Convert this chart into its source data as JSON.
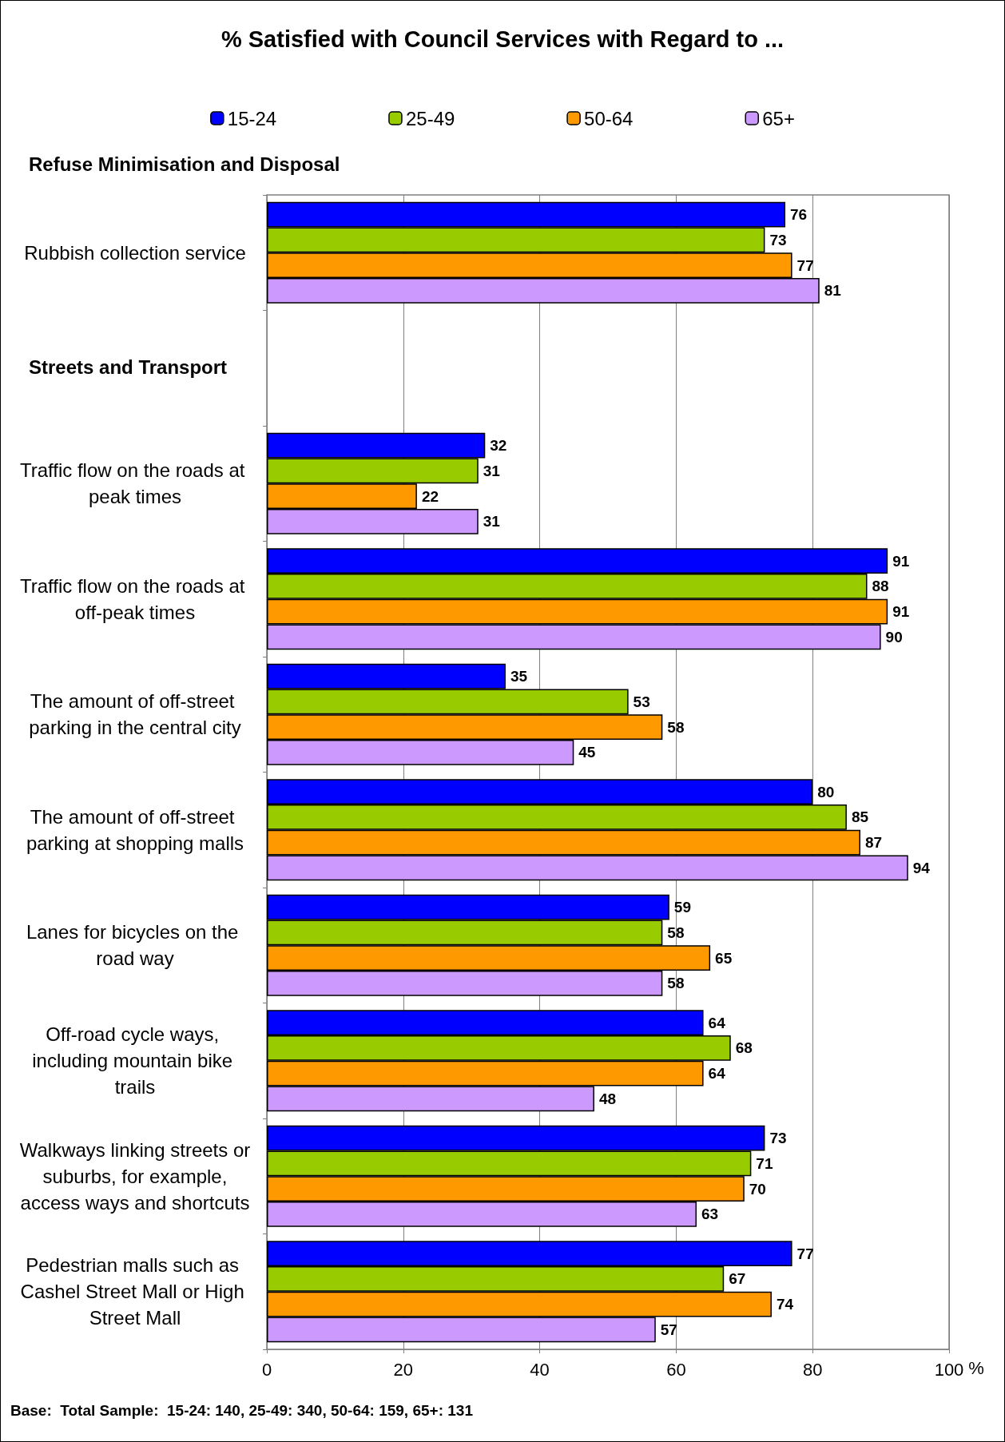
{
  "chart_data": {
    "type": "bar",
    "orientation": "horizontal",
    "title": "% Satisfied with Council Services with Regard to ...",
    "xlabel": "%",
    "categories": [
      "Rubbish collection service",
      null,
      "Traffic flow on the roads at peak times",
      "Traffic flow on the roads at off-peak times",
      "The amount of off-street parking in the central city",
      "The amount of off-street parking at shopping malls",
      "Lanes for bicycles on the road way",
      "Off-road cycle ways, including mountain bike trails",
      "Walkways linking streets or suburbs, for example, access ways and shortcuts",
      "Pedestrian malls such as Cashel Street Mall or High Street Mall"
    ],
    "series": [
      {
        "name": "15-24",
        "color": "#0000ff",
        "values": [
          76,
          null,
          32,
          91,
          35,
          80,
          59,
          64,
          73,
          77
        ]
      },
      {
        "name": "25-49",
        "color": "#99cc00",
        "values": [
          73,
          null,
          31,
          88,
          53,
          85,
          58,
          68,
          71,
          67
        ]
      },
      {
        "name": "50-64",
        "color": "#ff9900",
        "values": [
          77,
          null,
          22,
          91,
          58,
          87,
          65,
          64,
          70,
          74
        ]
      },
      {
        "name": "65+",
        "color": "#cc99ff",
        "values": [
          81,
          null,
          31,
          90,
          45,
          94,
          58,
          48,
          63,
          57
        ]
      }
    ],
    "xlim": [
      0,
      100
    ],
    "xticks": [
      0,
      20,
      40,
      60,
      80,
      100
    ],
    "grid": "x",
    "legend": "top",
    "data_labels": true,
    "annotations": [
      "Refuse Minimisation and Disposal",
      "Streets and Transport",
      "Base:  Total Sample:  15-24: 140, 25-49: 340, 50-64: 159, 65+: 131"
    ]
  }
}
